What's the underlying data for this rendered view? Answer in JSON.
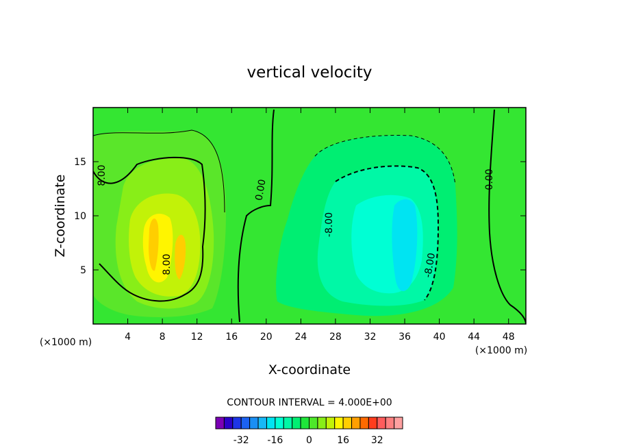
{
  "chart_data": {
    "type": "heatmap",
    "title": "vertical velocity",
    "xlabel": "X-coordinate",
    "ylabel": "Z-coordinate",
    "x_unit_left": "(×1000 m)",
    "x_unit_right": "(×1000 m)",
    "x_ticks": [
      "4",
      "8",
      "12",
      "16",
      "20",
      "24",
      "28",
      "32",
      "36",
      "40",
      "44",
      "48"
    ],
    "y_ticks": [
      "5",
      "10",
      "15"
    ],
    "xlim": [
      0,
      50
    ],
    "ylim": [
      0,
      20
    ],
    "contour_interval_text": "CONTOUR INTERVAL = 4.000E+00",
    "contour_labels": [
      "8.00",
      "8.00",
      "0.00",
      "-8.00",
      "-8.00",
      "0.00"
    ],
    "colorbar": {
      "colors": [
        "#7b00b5",
        "#2b00c8",
        "#1d35e6",
        "#1b62f2",
        "#1a8ff5",
        "#18b8f7",
        "#00e4f2",
        "#00ffd4",
        "#00f8a6",
        "#00ee72",
        "#1fe63a",
        "#4ee82a",
        "#88ee18",
        "#c2f208",
        "#fff500",
        "#ffce00",
        "#ff9f00",
        "#ff6a00",
        "#ff3d1e",
        "#ff5c5c",
        "#ff8080",
        "#ffa0a0"
      ],
      "tick_labels": [
        "-32",
        "-16",
        "0",
        "16",
        "32"
      ]
    }
  }
}
